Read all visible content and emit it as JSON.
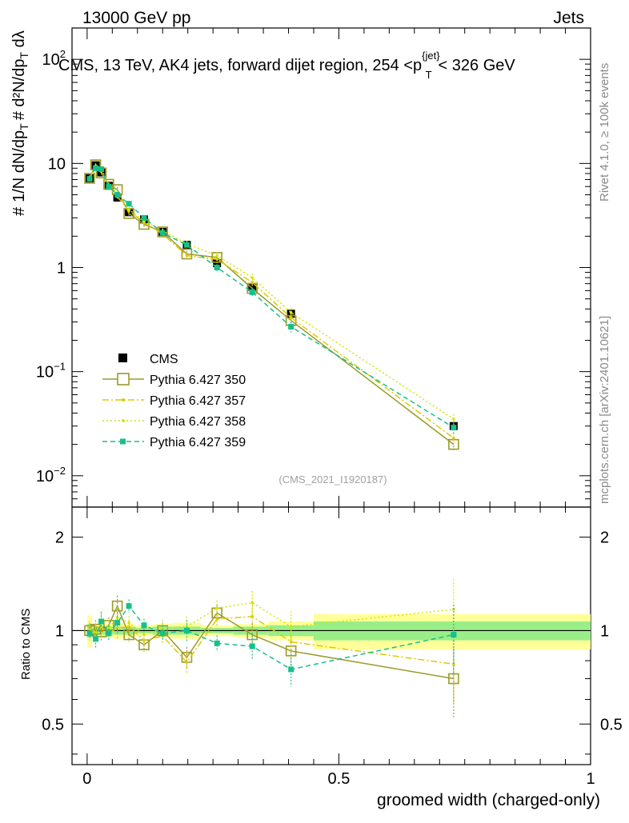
{
  "header": {
    "left": "13000 GeV pp",
    "right": "Jets"
  },
  "chart_data": {
    "type": "line",
    "title": "CMS, 13 TeV, AK4 jets, forward dijet region, 254 <p",
    "title_sup": "{jet}",
    "title_sub": "T",
    "title_end": "< 326 GeV",
    "ylabel_main": "1/N dN/dpT ... d²N/dpT dλ",
    "xlabel": "groomed width (charged-only)",
    "ratio_ylabel": "Ratio to CMS",
    "watermark": "(CMS_2021_I1920187)",
    "side_text_top": "Rivet 4.1.0, ≥ 100k events",
    "side_text_bottom": "mcplots.cern.ch [arXiv:2401.10621]",
    "xlim": [
      -0.03,
      1.0
    ],
    "ylim_main": [
      0.005,
      200
    ],
    "ylim_ratio": [
      0.37,
      2.5
    ],
    "y_ticks_main": [
      "10^-2",
      "10^-1",
      "1",
      "10",
      "10^2"
    ],
    "y_ticks_ratio": [
      "0.5",
      "1",
      "2"
    ],
    "x_ticks": [
      "0",
      "0.5",
      "1"
    ],
    "x": [
      0.005,
      0.017,
      0.028,
      0.043,
      0.06,
      0.083,
      0.113,
      0.15,
      0.198,
      0.258,
      0.328,
      0.405,
      0.728
    ],
    "cms": [
      7.2,
      9.6,
      8.2,
      6.1,
      4.7,
      3.4,
      2.9,
      2.2,
      1.65,
      1.1,
      0.65,
      0.36,
      0.03
    ],
    "series": [
      {
        "name": "Pythia 6.427 350",
        "color": "#9b9b2c",
        "style": "solid",
        "marker": "open-square",
        "values": [
          7.2,
          9.7,
          8.1,
          6.3,
          5.6,
          3.3,
          2.6,
          2.2,
          1.35,
          1.25,
          0.63,
          0.31,
          0.02
        ]
      },
      {
        "name": "Pythia 6.427 357",
        "color": "#e0c800",
        "style": "dashdot",
        "marker": "dot",
        "values": [
          7.3,
          9.4,
          8.4,
          6.0,
          4.8,
          3.5,
          2.7,
          2.1,
          1.3,
          1.2,
          0.72,
          0.33,
          0.023
        ]
      },
      {
        "name": "Pythia 6.427 358",
        "color": "#d6e400",
        "style": "dotted",
        "marker": "dot",
        "values": [
          7.4,
          9.5,
          8.9,
          6.2,
          5.2,
          3.6,
          2.8,
          2.25,
          1.7,
          1.3,
          0.8,
          0.37,
          0.035
        ]
      },
      {
        "name": "Pythia 6.427 359",
        "color": "#16c08a",
        "style": "dashed",
        "marker": "filled-square",
        "values": [
          7.1,
          9.0,
          8.8,
          6.0,
          5.0,
          4.1,
          3.0,
          2.15,
          1.65,
          1.0,
          0.58,
          0.27,
          0.029
        ]
      }
    ],
    "ratio_series": [
      {
        "name": "Pythia 6.427 350",
        "values": [
          1.0,
          1.01,
          0.99,
          1.04,
          1.2,
          0.97,
          0.9,
          1.0,
          0.82,
          1.14,
          0.97,
          0.86,
          0.7
        ]
      },
      {
        "name": "Pythia 6.427 357",
        "values": [
          1.01,
          0.98,
          1.02,
          0.98,
          1.02,
          1.03,
          0.93,
          0.96,
          0.79,
          1.09,
          1.11,
          0.92,
          0.78
        ]
      },
      {
        "name": "Pythia 6.427 358",
        "values": [
          1.02,
          0.99,
          1.08,
          1.02,
          1.1,
          1.06,
          0.97,
          1.02,
          1.03,
          1.18,
          1.23,
          1.03,
          1.17
        ]
      },
      {
        "name": "Pythia 6.427 359",
        "values": [
          0.98,
          0.94,
          1.07,
          0.98,
          1.06,
          1.2,
          1.04,
          0.98,
          1.0,
          0.91,
          0.89,
          0.75,
          0.97
        ]
      }
    ],
    "legend": [
      {
        "label": "CMS"
      },
      {
        "label": "Pythia 6.427 350"
      },
      {
        "label": "Pythia 6.427 357"
      },
      {
        "label": "Pythia 6.427 358"
      },
      {
        "label": "Pythia 6.427 359"
      }
    ]
  }
}
